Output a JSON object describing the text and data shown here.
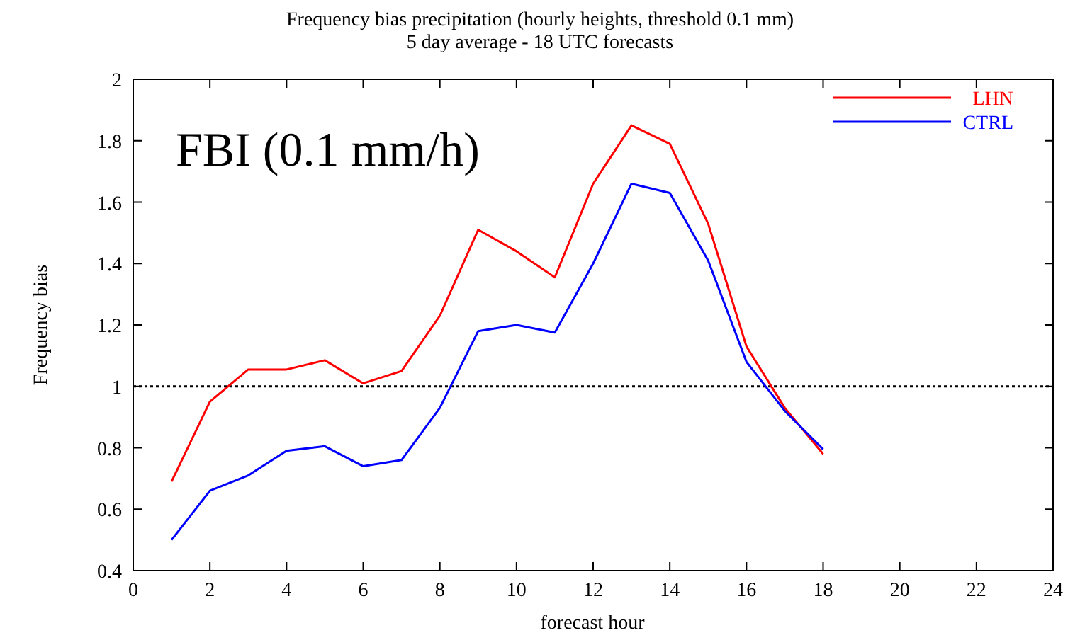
{
  "chart_data": {
    "type": "line",
    "title": "Frequency bias precipitation (hourly heights, threshold 0.1 mm)",
    "subtitle": "5 day average - 18 UTC forecasts",
    "xlabel": "forecast hour",
    "ylabel": "Frequency bias",
    "annotations": [
      "FBI (0.1 mm/h)"
    ],
    "x": [
      1,
      2,
      3,
      4,
      5,
      6,
      7,
      8,
      9,
      10,
      11,
      12,
      13,
      14,
      15,
      16,
      17,
      18
    ],
    "series": [
      {
        "name": "LHN",
        "color": "#ff0000",
        "values": [
          0.69,
          0.95,
          1.055,
          1.055,
          1.085,
          1.01,
          1.05,
          1.23,
          1.51,
          1.44,
          1.355,
          1.66,
          1.85,
          1.79,
          1.53,
          1.13,
          0.93,
          0.78
        ]
      },
      {
        "name": "CTRL",
        "color": "#0000ff",
        "values": [
          0.5,
          0.66,
          0.71,
          0.79,
          0.805,
          0.74,
          0.76,
          0.93,
          1.18,
          1.2,
          1.175,
          1.4,
          1.66,
          1.63,
          1.41,
          1.08,
          0.92,
          0.795
        ]
      }
    ],
    "xlim": [
      0,
      24
    ],
    "xticks": [
      0,
      2,
      4,
      6,
      8,
      10,
      12,
      14,
      16,
      18,
      20,
      22,
      24
    ],
    "ylim": [
      0.4,
      2
    ],
    "yticks": [
      0.4,
      0.6,
      0.8,
      1,
      1.2,
      1.4,
      1.6,
      1.8,
      2
    ],
    "ref_lines": [
      {
        "axis": "y",
        "value": 1,
        "color": "#000000",
        "line_style": "dotted"
      }
    ],
    "legend": "top right",
    "grid": false,
    "marker": "none",
    "line_style": "solid"
  }
}
